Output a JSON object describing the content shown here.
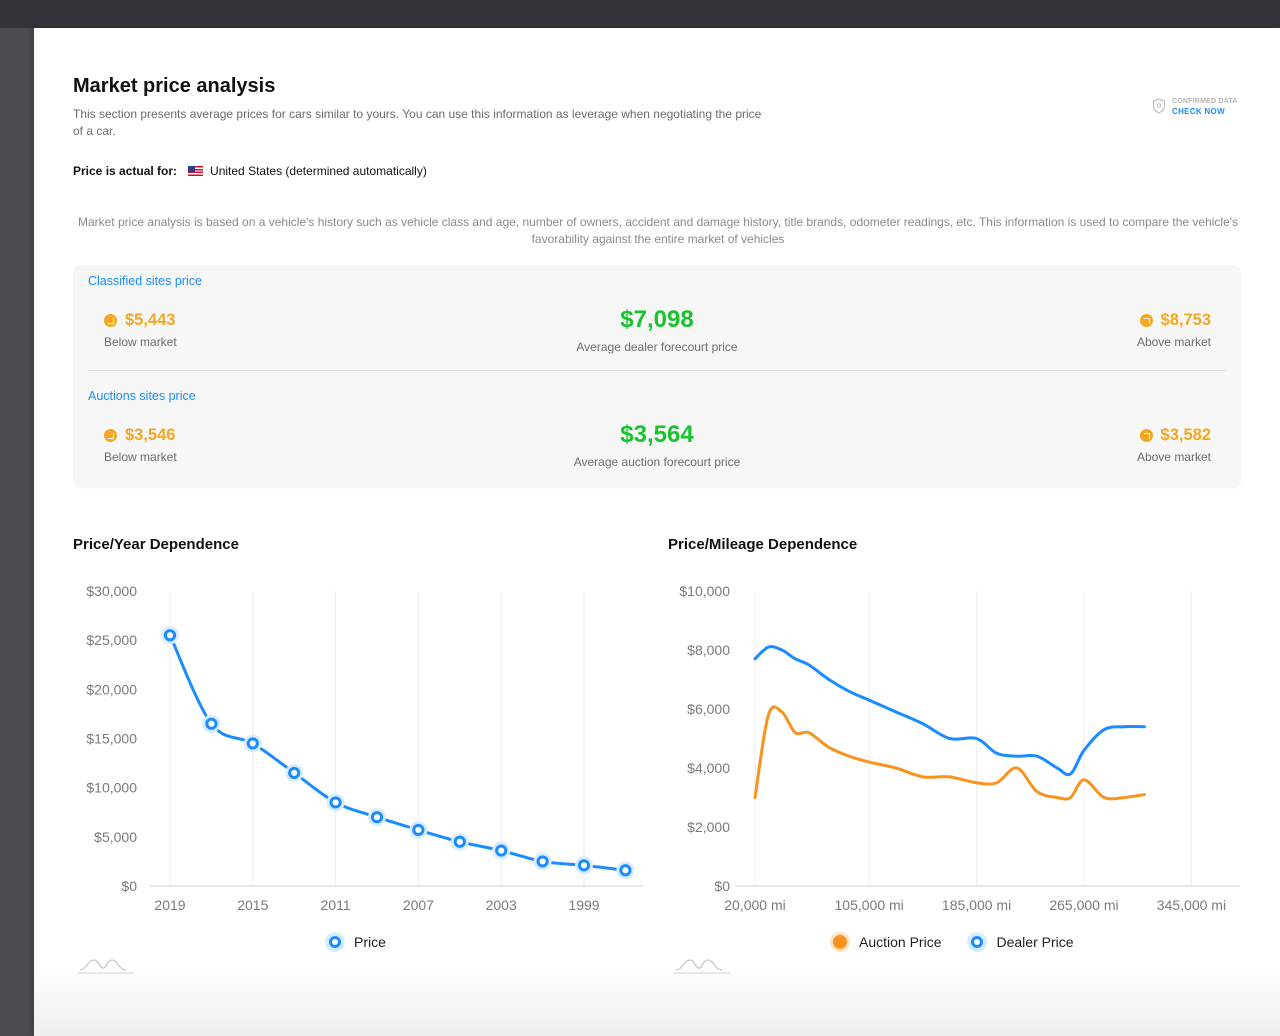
{
  "page": {
    "title": "Market price analysis",
    "intro": "This section presents average prices for cars similar to yours. You can use this information as leverage when negotiating the price of a car.",
    "confirmed_label": "CONFIRMED DATA",
    "check_now": "CHECK NOW",
    "actual_label": "Price is actual for:",
    "actual_value": "United States (determined automatically)",
    "note": "Market price analysis is based on a vehicle's history such as vehicle class and age, number of owners, accident and damage history, title brands, odometer readings, etc. This information is used to compare the vehicle's favorability against the entire market of vehicles"
  },
  "classified": {
    "title": "Classified sites price",
    "below_value": "$5,443",
    "below_label": "Below market",
    "avg_value": "$7,098",
    "avg_label": "Average dealer forecourt price",
    "above_value": "$8,753",
    "above_label": "Above market"
  },
  "auctions": {
    "title": "Auctions sites price",
    "below_value": "$3,546",
    "below_label": "Below market",
    "avg_value": "$3,564",
    "avg_label": "Average auction forecourt price",
    "above_value": "$3,582",
    "above_label": "Above market"
  },
  "colors": {
    "blue": "#1a8cff",
    "orange": "#f7931e",
    "green": "#17c42d",
    "amber": "#f5a623"
  },
  "chart_data": [
    {
      "type": "line",
      "title": "Price/Year Dependence",
      "x": [
        2019,
        2017,
        2015,
        2013,
        2011,
        2009,
        2007,
        2005,
        2003,
        2001,
        1999,
        1997
      ],
      "xtick_labels": [
        "2019",
        "2015",
        "2011",
        "2007",
        "2003",
        "1999"
      ],
      "ylim": [
        0,
        30000
      ],
      "yticks": [
        0,
        5000,
        10000,
        15000,
        20000,
        25000,
        30000
      ],
      "ytick_labels": [
        "$0",
        "$5,000",
        "$10,000",
        "$15,000",
        "$20,000",
        "$25,000",
        "$30,000"
      ],
      "grid": true,
      "legend": "bottom",
      "series": [
        {
          "name": "Price",
          "color": "#1a8cff",
          "values": [
            25500,
            16500,
            14500,
            11500,
            8500,
            7000,
            5700,
            4500,
            3600,
            2500,
            2100,
            1600
          ]
        }
      ]
    },
    {
      "type": "line",
      "title": "Price/Mileage Dependence",
      "x": [
        20000,
        30000,
        40000,
        50000,
        60000,
        75000,
        90000,
        105000,
        125000,
        145000,
        165000,
        185000,
        200000,
        215000,
        230000,
        245000,
        255000,
        265000,
        280000,
        295000,
        310000,
        325000,
        340000,
        355000,
        370000
      ],
      "xtick_labels": [
        "20,000 mi",
        "105,000 mi",
        "185,000 mi",
        "265,000 mi",
        "345,000 mi"
      ],
      "xtick_values": [
        20000,
        105000,
        185000,
        265000,
        345000
      ],
      "ylim": [
        0,
        10000
      ],
      "yticks": [
        0,
        2000,
        4000,
        6000,
        8000,
        10000
      ],
      "ytick_labels": [
        "$0",
        "$2,000",
        "$4,000",
        "$6,000",
        "$8,000",
        "$10,000"
      ],
      "grid": true,
      "legend": "bottom",
      "series": [
        {
          "name": "Auction Price",
          "color": "#f7931e",
          "values": [
            3000,
            5800,
            5900,
            5200,
            5200,
            4700,
            4400,
            4200,
            4000,
            3700,
            3700,
            3500,
            3500,
            4000,
            3200,
            3000,
            3000,
            3600,
            3000,
            3000,
            3100,
            null,
            null,
            null,
            null
          ]
        },
        {
          "name": "Dealer Price",
          "color": "#1a8cff",
          "values": [
            7700,
            8100,
            8000,
            7700,
            7500,
            7000,
            6600,
            6300,
            5900,
            5500,
            5000,
            5000,
            4500,
            4400,
            4400,
            4000,
            3800,
            4600,
            5300,
            5400,
            5400,
            null,
            null,
            null,
            null
          ]
        }
      ]
    }
  ]
}
